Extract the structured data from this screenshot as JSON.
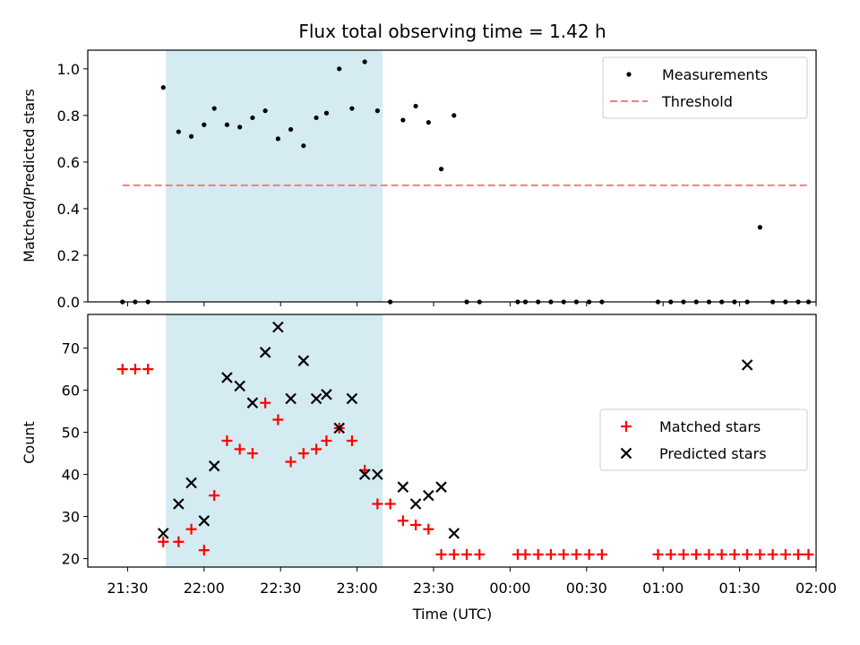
{
  "chart_data": {
    "type": "scatter",
    "title": "Flux total observing time = 1.42 h",
    "xlabel": "Time (UTC)",
    "x_tick_labels": [
      "21:30",
      "22:00",
      "22:30",
      "23:00",
      "23:30",
      "00:00",
      "00:30",
      "01:00",
      "01:30",
      "02:00"
    ],
    "x_tick_hours": [
      21.5,
      22.0,
      22.5,
      23.0,
      23.5,
      24.0,
      24.5,
      25.0,
      25.5,
      26.0
    ],
    "xlim": [
      21.24,
      26.0
    ],
    "shaded_region": {
      "start": "21:45",
      "end": "23:10",
      "color": "#d3ebf1"
    },
    "top_panel": {
      "ylabel": "Matched/Predicted stars",
      "ylim": [
        0,
        1.08
      ],
      "y_ticks": [
        0.0,
        0.2,
        0.4,
        0.6,
        0.8,
        1.0
      ],
      "y_tick_labels": [
        "0.0",
        "0.2",
        "0.4",
        "0.6",
        "0.8",
        "1.0"
      ],
      "legend_position": "top-right",
      "series": [
        {
          "name": "Measurements",
          "marker": "dot",
          "color": "#000000",
          "x": [
            "21:28",
            "21:33",
            "21:38",
            "21:44",
            "21:50",
            "21:55",
            "22:00",
            "22:04",
            "22:09",
            "22:14",
            "22:19",
            "22:24",
            "22:29",
            "22:34",
            "22:39",
            "22:44",
            "22:48",
            "22:53",
            "22:58",
            "23:03",
            "23:08",
            "23:13",
            "23:18",
            "23:23",
            "23:28",
            "23:33",
            "23:38",
            "23:43",
            "23:48",
            "24:03",
            "24:06",
            "24:11",
            "24:16",
            "24:21",
            "24:26",
            "24:31",
            "24:36",
            "24:58",
            "25:03",
            "25:08",
            "25:13",
            "25:18",
            "25:23",
            "25:28",
            "25:33",
            "25:38",
            "25:43",
            "25:48",
            "25:53",
            "25:57"
          ],
          "y": [
            0,
            0,
            0,
            0.92,
            0.73,
            0.71,
            0.76,
            0.83,
            0.76,
            0.75,
            0.79,
            0.82,
            0.7,
            0.74,
            0.67,
            0.79,
            0.81,
            1.0,
            0.83,
            1.03,
            0.82,
            0,
            0.78,
            0.84,
            0.77,
            0.57,
            0.8,
            0,
            0,
            0,
            0,
            0,
            0,
            0,
            0,
            0,
            0,
            0,
            0,
            0,
            0,
            0,
            0,
            0,
            0,
            0.32,
            0,
            0,
            0,
            0
          ]
        },
        {
          "name": "Threshold",
          "marker": "dashed-line",
          "color": "#f08080",
          "x": [
            "21:28",
            "25:57"
          ],
          "y": [
            0.5,
            0.5
          ]
        }
      ]
    },
    "bottom_panel": {
      "ylabel": "Count",
      "ylim": [
        18,
        78
      ],
      "y_ticks": [
        20,
        30,
        40,
        50,
        60,
        70
      ],
      "y_tick_labels": [
        "20",
        "30",
        "40",
        "50",
        "60",
        "70"
      ],
      "legend_position": "center-right",
      "series": [
        {
          "name": "Matched stars",
          "marker": "plus",
          "color": "#ff0000",
          "x": [
            "21:28",
            "21:33",
            "21:38",
            "21:44",
            "21:50",
            "21:55",
            "22:00",
            "22:04",
            "22:09",
            "22:14",
            "22:19",
            "22:24",
            "22:29",
            "22:34",
            "22:39",
            "22:44",
            "22:48",
            "22:53",
            "22:58",
            "23:03",
            "23:08",
            "23:13",
            "23:18",
            "23:23",
            "23:28",
            "23:33",
            "23:38",
            "23:43",
            "23:48",
            "24:03",
            "24:06",
            "24:11",
            "24:16",
            "24:21",
            "24:26",
            "24:31",
            "24:36",
            "24:58",
            "25:03",
            "25:08",
            "25:13",
            "25:18",
            "25:23",
            "25:28",
            "25:33",
            "25:38",
            "25:43",
            "25:48",
            "25:53",
            "25:57"
          ],
          "y": [
            65,
            65,
            65,
            24,
            24,
            27,
            22,
            35,
            48,
            46,
            45,
            57,
            53,
            43,
            45,
            46,
            48,
            51,
            48,
            41,
            33,
            33,
            29,
            28,
            27,
            21,
            21,
            21,
            21,
            21,
            21,
            21,
            21,
            21,
            21,
            21,
            21,
            21,
            21,
            21,
            21,
            21,
            21,
            21,
            21,
            21,
            21,
            21,
            21,
            21
          ]
        },
        {
          "name": "Predicted stars",
          "marker": "x",
          "color": "#000000",
          "x": [
            "21:44",
            "21:50",
            "21:55",
            "22:00",
            "22:04",
            "22:09",
            "22:14",
            "22:19",
            "22:24",
            "22:29",
            "22:34",
            "22:39",
            "22:44",
            "22:48",
            "22:53",
            "22:58",
            "23:03",
            "23:08",
            "23:18",
            "23:23",
            "23:28",
            "23:33",
            "23:38",
            "25:33"
          ],
          "y": [
            26,
            33,
            38,
            29,
            42,
            63,
            61,
            57,
            69,
            75,
            58,
            67,
            58,
            59,
            51,
            58,
            40,
            40,
            37,
            33,
            35,
            37,
            26,
            66
          ]
        }
      ]
    }
  }
}
